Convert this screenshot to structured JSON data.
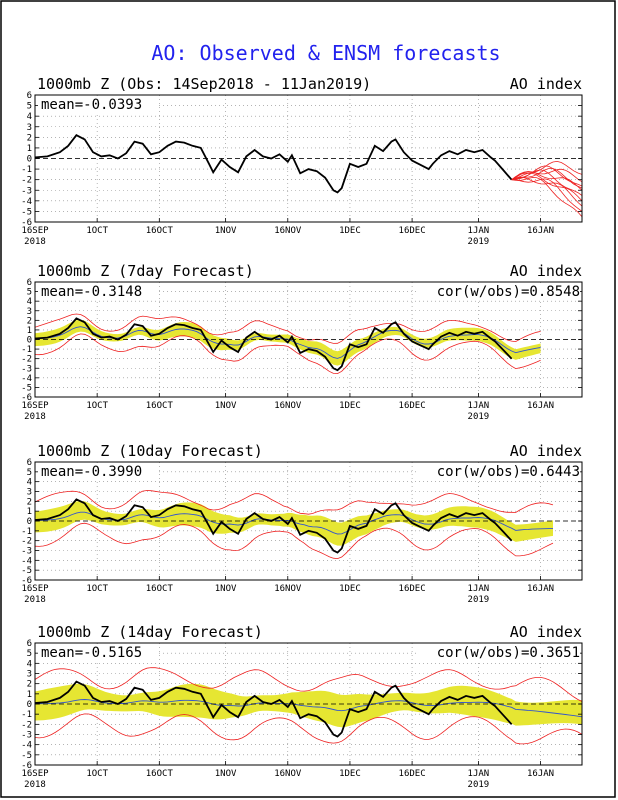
{
  "figure": {
    "title": "AO: Observed & ENSM forecasts"
  },
  "chart_data": [
    {
      "type": "line",
      "panel_title": "1000mb Z (Obs: 14Sep2018 - 11Jan2019)",
      "panel_right": "AO index",
      "mean_label": "mean=-0.0393",
      "cor_label": "",
      "ylim": [
        -6,
        6
      ],
      "yticks": [
        6,
        5,
        4,
        3,
        2,
        1,
        0,
        -1,
        -2,
        -3,
        -4,
        -5,
        -6
      ],
      "x_unit": "days from 16SEP2018 (tick positions)",
      "xticks": [
        {
          "label": "16SEP",
          "sub": "2018",
          "day": 0
        },
        {
          "label": "1OCT",
          "sub": "",
          "day": 15
        },
        {
          "label": "16OCT",
          "sub": "",
          "day": 30
        },
        {
          "label": "1NOV",
          "sub": "",
          "day": 46
        },
        {
          "label": "16NOV",
          "sub": "",
          "day": 61
        },
        {
          "label": "1DEC",
          "sub": "",
          "day": 76
        },
        {
          "label": "16DEC",
          "sub": "",
          "day": 91
        },
        {
          "label": "1JAN",
          "sub": "2019",
          "day": 107
        },
        {
          "label": "16JAN",
          "sub": "",
          "day": 122
        }
      ],
      "xlim": [
        0,
        132
      ],
      "observed": [
        [
          0,
          0.1
        ],
        [
          3,
          0.2
        ],
        [
          6,
          0.6
        ],
        [
          8,
          1.2
        ],
        [
          10,
          2.2
        ],
        [
          12,
          1.8
        ],
        [
          14,
          0.6
        ],
        [
          16,
          0.2
        ],
        [
          18,
          0.3
        ],
        [
          20,
          0.0
        ],
        [
          22,
          0.5
        ],
        [
          24,
          1.6
        ],
        [
          26,
          1.4
        ],
        [
          28,
          0.4
        ],
        [
          30,
          0.6
        ],
        [
          32,
          1.2
        ],
        [
          34,
          1.6
        ],
        [
          36,
          1.5
        ],
        [
          38,
          1.2
        ],
        [
          40,
          1.0
        ],
        [
          42,
          -0.5
        ],
        [
          43,
          -1.3
        ],
        [
          45,
          -0.1
        ],
        [
          47,
          -0.8
        ],
        [
          49,
          -1.3
        ],
        [
          51,
          0.2
        ],
        [
          53,
          0.8
        ],
        [
          55,
          0.2
        ],
        [
          57,
          0.0
        ],
        [
          59,
          0.4
        ],
        [
          61,
          -0.3
        ],
        [
          62,
          0.3
        ],
        [
          64,
          -1.4
        ],
        [
          66,
          -1.0
        ],
        [
          68,
          -1.2
        ],
        [
          70,
          -1.8
        ],
        [
          72,
          -3.0
        ],
        [
          73,
          -3.2
        ],
        [
          74,
          -2.8
        ],
        [
          76,
          -0.5
        ],
        [
          78,
          -0.8
        ],
        [
          80,
          -0.5
        ],
        [
          82,
          1.2
        ],
        [
          84,
          0.7
        ],
        [
          86,
          1.6
        ],
        [
          87,
          1.8
        ],
        [
          89,
          0.6
        ],
        [
          91,
          -0.2
        ],
        [
          93,
          -0.6
        ],
        [
          95,
          -1.0
        ],
        [
          96,
          -0.5
        ],
        [
          98,
          0.3
        ],
        [
          100,
          0.7
        ],
        [
          102,
          0.4
        ],
        [
          104,
          0.8
        ],
        [
          106,
          0.6
        ],
        [
          108,
          0.8
        ],
        [
          110,
          0.1
        ],
        [
          111,
          -0.2
        ],
        [
          113,
          -1.1
        ],
        [
          115,
          -2.0
        ]
      ],
      "members_start_day": 115,
      "members_start_value": -2.0,
      "members_end": [
        -2.2,
        -2.8,
        -3.5,
        -4.0,
        -4.5,
        -5.0,
        -5.5,
        -3.0,
        -1.5,
        -2.6
      ]
    },
    {
      "type": "line",
      "panel_title": "1000mb Z (7day Forecast)",
      "panel_right": "AO index",
      "mean_label": "mean=-0.3148",
      "cor_label": "cor(w/obs)=0.8548",
      "ylim": [
        -6,
        6
      ],
      "yticks": [
        6,
        5,
        4,
        3,
        2,
        1,
        0,
        -1,
        -2,
        -3,
        -4,
        -5,
        -6
      ],
      "xticks": [
        {
          "label": "16SEP",
          "sub": "2018",
          "day": 0
        },
        {
          "label": "1OCT",
          "sub": "",
          "day": 15
        },
        {
          "label": "16OCT",
          "sub": "",
          "day": 30
        },
        {
          "label": "1NOV",
          "sub": "",
          "day": 46
        },
        {
          "label": "16NOV",
          "sub": "",
          "day": 61
        },
        {
          "label": "1DEC",
          "sub": "",
          "day": 76
        },
        {
          "label": "16DEC",
          "sub": "",
          "day": 91
        },
        {
          "label": "1JAN",
          "sub": "2019",
          "day": 107
        },
        {
          "label": "16JAN",
          "sub": "",
          "day": 122
        }
      ],
      "xlim": [
        0,
        132
      ],
      "forecast_end_day": 122,
      "spread_inner": 0.7,
      "spread_outer": 1.4
    },
    {
      "type": "line",
      "panel_title": "1000mb Z (10day Forecast)",
      "panel_right": "AO index",
      "mean_label": "mean=-0.3990",
      "cor_label": "cor(w/obs)=0.6443",
      "ylim": [
        -6,
        6
      ],
      "yticks": [
        6,
        5,
        4,
        3,
        2,
        1,
        0,
        -1,
        -2,
        -3,
        -4,
        -5,
        -6
      ],
      "xticks": [
        {
          "label": "16SEP",
          "sub": "2018",
          "day": 0
        },
        {
          "label": "1OCT",
          "sub": "",
          "day": 15
        },
        {
          "label": "16OCT",
          "sub": "",
          "day": 30
        },
        {
          "label": "1NOV",
          "sub": "",
          "day": 46
        },
        {
          "label": "16NOV",
          "sub": "",
          "day": 61
        },
        {
          "label": "1DEC",
          "sub": "",
          "day": 76
        },
        {
          "label": "16DEC",
          "sub": "",
          "day": 91
        },
        {
          "label": "1JAN",
          "sub": "2019",
          "day": 107
        },
        {
          "label": "16JAN",
          "sub": "",
          "day": 122
        }
      ],
      "xlim": [
        0,
        132
      ],
      "forecast_end_day": 125,
      "spread_inner": 1.1,
      "spread_outer": 2.2
    },
    {
      "type": "line",
      "panel_title": "1000mb Z (14day Forecast)",
      "panel_right": "AO index",
      "mean_label": "mean=-0.5165",
      "cor_label": "cor(w/obs)=0.3651",
      "ylim": [
        -6,
        6
      ],
      "yticks": [
        6,
        5,
        4,
        3,
        2,
        1,
        0,
        -1,
        -2,
        -3,
        -4,
        -5,
        -6
      ],
      "xticks": [
        {
          "label": "16SEP",
          "sub": "2018",
          "day": 0
        },
        {
          "label": "1OCT",
          "sub": "",
          "day": 15
        },
        {
          "label": "16OCT",
          "sub": "",
          "day": 30
        },
        {
          "label": "1NOV",
          "sub": "",
          "day": 46
        },
        {
          "label": "16NOV",
          "sub": "",
          "day": 61
        },
        {
          "label": "1DEC",
          "sub": "",
          "day": 76
        },
        {
          "label": "16DEC",
          "sub": "",
          "day": 91
        },
        {
          "label": "1JAN",
          "sub": "2019",
          "day": 107
        },
        {
          "label": "16JAN",
          "sub": "",
          "day": 122
        }
      ],
      "xlim": [
        0,
        132
      ],
      "forecast_end_day": 132,
      "spread_inner": 1.5,
      "spread_outer": 2.8
    }
  ],
  "colors": {
    "title": "#2222ee",
    "observed": "#000000",
    "members": "#ee2222",
    "spread_fill": "#e6e632",
    "ensemble_mean": "#3355cc",
    "grid": "#888888"
  }
}
